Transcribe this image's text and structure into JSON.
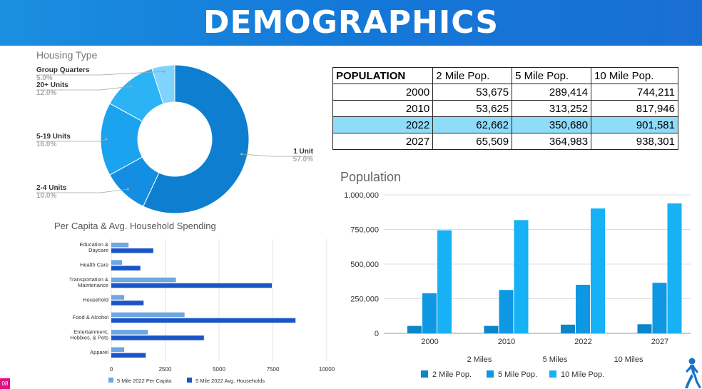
{
  "header": {
    "title": "DEMOGRAPHICS"
  },
  "footer": {
    "page_number": "08"
  },
  "population_table": {
    "headers": [
      "POPULATION",
      "2 Mile Pop.",
      "5 Mile Pop.",
      "10 Mile Pop."
    ],
    "rows": [
      {
        "year": "2000",
        "values": [
          "53,675",
          "289,414",
          "744,211"
        ]
      },
      {
        "year": "2010",
        "values": [
          "53,625",
          "313,252",
          "817,946"
        ]
      },
      {
        "year": "2022",
        "values": [
          "62,662",
          "350,680",
          "901,581"
        ]
      },
      {
        "year": "2027",
        "values": [
          "65,509",
          "364,983",
          "938,301"
        ]
      }
    ]
  },
  "colors": {
    "header": "#1478d8",
    "highlight_row": "#8fdcf9",
    "donut": [
      "#0e7fd0",
      "#138ee2",
      "#1ba3f0",
      "#2bb3f5",
      "#7fd3fc"
    ],
    "pop_series": [
      "#0a86c9",
      "#0e98e3",
      "#17b1f5"
    ],
    "spend_series": [
      "#6fa6e3",
      "#1a55c8"
    ]
  },
  "chart_data": [
    {
      "type": "pie",
      "title": "Housing Type",
      "labels": [
        "1 Unit",
        "2-4 Units",
        "5-19 Units",
        "20+ Units",
        "Group Quarters"
      ],
      "values": [
        57.0,
        10.0,
        16.0,
        12.0,
        5.0
      ],
      "value_labels": [
        "57.0%",
        "10.0%",
        "16.0%",
        "12.0%",
        "5.0%"
      ]
    },
    {
      "type": "bar",
      "title": "Population",
      "categories": [
        "2000",
        "2010",
        "2022",
        "2027"
      ],
      "group_labels": [
        "2 Miles",
        "5 Miles",
        "10 Miles"
      ],
      "series": [
        {
          "name": "2 Mile Pop.",
          "values": [
            53675,
            53625,
            62662,
            65509
          ]
        },
        {
          "name": "5 Mile Pop.",
          "values": [
            289414,
            313252,
            350680,
            364983
          ]
        },
        {
          "name": "10 Mile Pop.",
          "values": [
            744211,
            817946,
            901581,
            938301
          ]
        }
      ],
      "yticks": [
        0,
        250000,
        500000,
        750000,
        1000000
      ],
      "ytick_labels": [
        "0",
        "250,000",
        "500,000",
        "750,000",
        "1,000,000"
      ],
      "ylim": [
        0,
        1000000
      ]
    },
    {
      "type": "bar",
      "orientation": "horizontal",
      "title": "Per Capita & Avg. Household Spending",
      "categories": [
        [
          "Education &",
          "Daycare"
        ],
        [
          "Health Care"
        ],
        [
          "Transportation &",
          "Maintenance"
        ],
        [
          "Household"
        ],
        [
          "Food & Alcohol"
        ],
        [
          "Entertainment,",
          "Hobbies, & Pets"
        ],
        [
          "Apparel"
        ]
      ],
      "series": [
        {
          "name": "5 Mile 2022 Per Capita",
          "values": [
            800,
            500,
            3000,
            600,
            3400,
            1700,
            600
          ]
        },
        {
          "name": "5 Mile 2022 Avg. Households",
          "values": [
            1950,
            1350,
            7450,
            1500,
            8550,
            4300,
            1600
          ]
        }
      ],
      "xticks": [
        0,
        2500,
        5000,
        7500,
        10000
      ],
      "xtick_labels": [
        "0",
        "2500",
        "5000",
        "7500",
        "10000"
      ],
      "xlim": [
        0,
        10000
      ]
    }
  ]
}
